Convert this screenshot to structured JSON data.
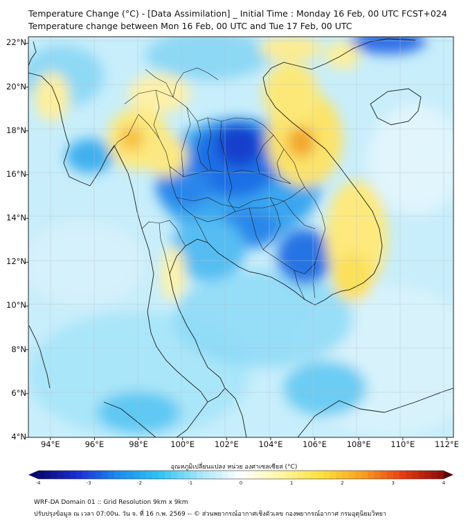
{
  "header": {
    "line1": "Temperature Change (°C) - [Data Assimilation] _ Initial Time : Monday 16 Feb, 00 UTC FCST+024",
    "line2": "Temperature change between Mon 16 Feb, 00 UTC and Tue 17 Feb, 00 UTC"
  },
  "map": {
    "lon_range": [
      93,
      112.3
    ],
    "lat_range": [
      4,
      22.3
    ],
    "y_ticks": [
      {
        "label": "22°N",
        "value": 22
      },
      {
        "label": "20°N",
        "value": 20
      },
      {
        "label": "18°N",
        "value": 18
      },
      {
        "label": "16°N",
        "value": 16
      },
      {
        "label": "14°N",
        "value": 14
      },
      {
        "label": "12°N",
        "value": 12
      },
      {
        "label": "10°N",
        "value": 10
      },
      {
        "label": "8°N",
        "value": 8
      },
      {
        "label": "6°N",
        "value": 6
      },
      {
        "label": "4°N",
        "value": 4
      }
    ],
    "x_ticks": [
      {
        "label": "94°E",
        "value": 94
      },
      {
        "label": "96°E",
        "value": 96
      },
      {
        "label": "98°E",
        "value": 98
      },
      {
        "label": "100°E",
        "value": 100
      },
      {
        "label": "102°E",
        "value": 102
      },
      {
        "label": "104°E",
        "value": 104
      },
      {
        "label": "106°E",
        "value": 106
      },
      {
        "label": "108°E",
        "value": 108
      },
      {
        "label": "110°E",
        "value": 110
      },
      {
        "label": "112°E",
        "value": 112
      }
    ],
    "grid": true
  },
  "colorbar": {
    "title": "อุณหภูมิเปลี่ยนแปลง หน่วย องศาเซลเซียส (°C)",
    "range": [
      -4,
      4
    ],
    "ticks": [
      {
        "label": "-4",
        "value": -4
      },
      {
        "label": "-3",
        "value": -3
      },
      {
        "label": "-2",
        "value": -2
      },
      {
        "label": "-1",
        "value": -1
      },
      {
        "label": "0",
        "value": 0
      },
      {
        "label": "1",
        "value": 1
      },
      {
        "label": "2",
        "value": 2
      },
      {
        "label": "3",
        "value": 3
      },
      {
        "label": "4",
        "value": 4
      }
    ],
    "colors": [
      "#08086e",
      "#1c2fd8",
      "#1a8ef0",
      "#2ec4f4",
      "#a8e6fa",
      "#ffffff",
      "#fff6a0",
      "#fde03a",
      "#f9a020",
      "#e83a10",
      "#8a0a0a"
    ]
  },
  "footer": {
    "line1": "WRF-DA Domain 01 :: Grid Resolution 9km x 9km",
    "line2": "ปรับปรุงข้อมูล ณ เวลา 07:00น. วัน จ. ที่ 16 ก.พ. 2569 -- © ส่วนพยากรณ์อากาศเชิงตัวเลข กองพยากรณ์อากาศ กรมอุตุนิยมวิทยา"
  }
}
